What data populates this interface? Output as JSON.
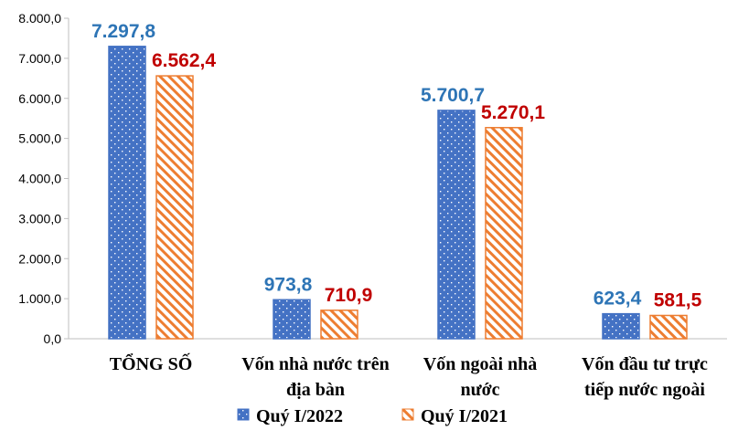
{
  "chart_data": {
    "type": "bar",
    "title": "",
    "xlabel": "",
    "ylabel": "",
    "ylim": [
      0,
      8000
    ],
    "y_ticks": [
      0,
      1000,
      2000,
      3000,
      4000,
      5000,
      6000,
      7000,
      8000
    ],
    "y_tick_labels": [
      "0,0",
      "1.000,0",
      "2.000,0",
      "3.000,0",
      "4.000,0",
      "5.000,0",
      "6.000,0",
      "7.000,0",
      "8.000,0"
    ],
    "grid": false,
    "legend_position": "bottom",
    "categories": [
      [
        "TỔNG SỐ"
      ],
      [
        "Vốn nhà nước trên",
        "địa bàn"
      ],
      [
        "Vốn ngoài nhà",
        "nước"
      ],
      [
        "Vốn đầu tư trực",
        "tiếp nước ngoài"
      ]
    ],
    "series": [
      {
        "name": "Quý I/2022",
        "values": [
          7297.8,
          973.8,
          5700.7,
          623.4
        ],
        "labels": [
          "7.297,8",
          "973,8",
          "5.700,7",
          "623,4"
        ],
        "color": "#4472C4",
        "label_color": "#2E75B6",
        "pattern": "dots"
      },
      {
        "name": "Quý I/2021",
        "values": [
          6562.4,
          710.9,
          5270.1,
          581.5
        ],
        "labels": [
          "6.562,4",
          "710,9",
          "5.270,1",
          "581,5"
        ],
        "color": "#ED7D31",
        "label_color": "#C00000",
        "pattern": "diagonal-stripes"
      }
    ]
  }
}
